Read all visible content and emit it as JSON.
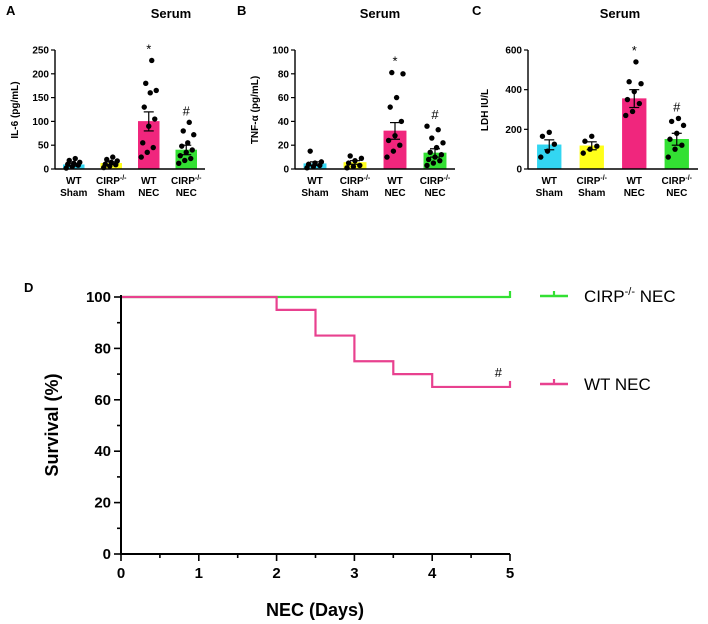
{
  "chart_data": [
    {
      "id": "A",
      "type": "bar",
      "panel_label": "A",
      "title": "Serum",
      "ylabel": "IL-6 (pg/mL)",
      "ylim": [
        0,
        250
      ],
      "yticks": [
        0,
        50,
        100,
        150,
        200,
        250
      ],
      "categories": [
        {
          "line1": "WT",
          "line2": "Sham"
        },
        {
          "line1": "CIRP",
          "sup": "-/-",
          "line2": "Sham"
        },
        {
          "line1": "WT",
          "line2": "NEC"
        },
        {
          "line1": "CIRP",
          "sup": "-/-",
          "line2": "NEC"
        }
      ],
      "colors": [
        "#33d6f2",
        "#ffff1a",
        "#f0267d",
        "#33e033"
      ],
      "means": [
        9,
        12,
        100,
        40
      ],
      "sem": [
        3,
        3,
        20,
        10
      ],
      "significance": [
        "",
        "",
        "*",
        "#"
      ],
      "points": [
        [
          2,
          5,
          8,
          10,
          12,
          14,
          18,
          22
        ],
        [
          3,
          6,
          9,
          10,
          14,
          17,
          20,
          25
        ],
        [
          25,
          35,
          45,
          55,
          90,
          105,
          130,
          160,
          165,
          180,
          228
        ],
        [
          12,
          18,
          22,
          28,
          35,
          40,
          48,
          55,
          72,
          80,
          98
        ]
      ]
    },
    {
      "id": "B",
      "type": "bar",
      "panel_label": "B",
      "title": "Serum",
      "ylabel": "TNF-α (pg/mL)",
      "ylim": [
        0,
        100
      ],
      "yticks": [
        0,
        20,
        40,
        60,
        80,
        100
      ],
      "categories": [
        {
          "line1": "WT",
          "line2": "Sham"
        },
        {
          "line1": "CIRP",
          "sup": "-/-",
          "line2": "Sham"
        },
        {
          "line1": "WT",
          "line2": "NEC"
        },
        {
          "line1": "CIRP",
          "sup": "-/-",
          "line2": "NEC"
        }
      ],
      "colors": [
        "#33d6f2",
        "#ffff1a",
        "#f0267d",
        "#33e033"
      ],
      "means": [
        4.5,
        5.5,
        32,
        13.5
      ],
      "sem": [
        1.5,
        1.5,
        7,
        3.5
      ],
      "significance": [
        "",
        "",
        "*",
        "#"
      ],
      "points": [
        [
          1,
          2,
          3,
          4,
          5,
          6,
          15
        ],
        [
          1,
          2,
          3,
          5,
          7,
          9,
          11
        ],
        [
          10,
          15,
          20,
          24,
          28,
          40,
          52,
          60,
          80,
          81
        ],
        [
          3,
          5,
          7,
          8,
          10,
          12,
          14,
          18,
          22,
          26,
          33,
          36
        ]
      ]
    },
    {
      "id": "C",
      "type": "bar",
      "panel_label": "C",
      "title": "Serum",
      "ylabel": "LDH IU/L",
      "ylim": [
        0,
        600
      ],
      "yticks": [
        0,
        200,
        400,
        600
      ],
      "categories": [
        {
          "line1": "WT",
          "line2": "Sham"
        },
        {
          "line1": "CIRP",
          "sup": "-/-",
          "line2": "Sham"
        },
        {
          "line1": "WT",
          "line2": "NEC"
        },
        {
          "line1": "CIRP",
          "sup": "-/-",
          "line2": "NEC"
        }
      ],
      "colors": [
        "#33d6f2",
        "#ffff1a",
        "#f0267d",
        "#33e033"
      ],
      "means": [
        122,
        117,
        355,
        150
      ],
      "sem": [
        25,
        20,
        45,
        30
      ],
      "significance": [
        "",
        "",
        "*",
        "#"
      ],
      "points": [
        [
          60,
          90,
          125,
          165,
          185
        ],
        [
          80,
          100,
          115,
          140,
          165
        ],
        [
          270,
          290,
          330,
          350,
          390,
          430,
          440,
          540
        ],
        [
          60,
          100,
          120,
          150,
          180,
          220,
          240,
          255
        ]
      ]
    },
    {
      "id": "D",
      "type": "line",
      "panel_label": "D",
      "xlabel": "NEC (Days)",
      "ylabel": "Survival (%)",
      "xlim": [
        0,
        5
      ],
      "ylim": [
        0,
        100
      ],
      "xticks": [
        0,
        1,
        2,
        3,
        4,
        5
      ],
      "yticks": [
        0,
        20,
        40,
        60,
        80,
        100
      ],
      "series": [
        {
          "name": "CIRP-/- NEC",
          "legend_main": "CIRP",
          "legend_sup": "-/-",
          "legend_tail": " NEC",
          "color": "#33e033",
          "steps": [
            [
              0,
              100
            ],
            [
              5,
              100
            ]
          ]
        },
        {
          "name": "WT NEC",
          "legend_main": "WT NEC",
          "legend_sup": "",
          "legend_tail": "",
          "color": "#e8418f",
          "steps": [
            [
              0,
              100
            ],
            [
              2,
              100
            ],
            [
              2,
              95
            ],
            [
              2.5,
              95
            ],
            [
              2.5,
              85
            ],
            [
              3,
              85
            ],
            [
              3,
              75
            ],
            [
              3.5,
              75
            ],
            [
              3.5,
              70
            ],
            [
              4,
              70
            ],
            [
              4,
              65
            ],
            [
              5,
              65
            ]
          ]
        }
      ],
      "annotation": "#"
    }
  ]
}
